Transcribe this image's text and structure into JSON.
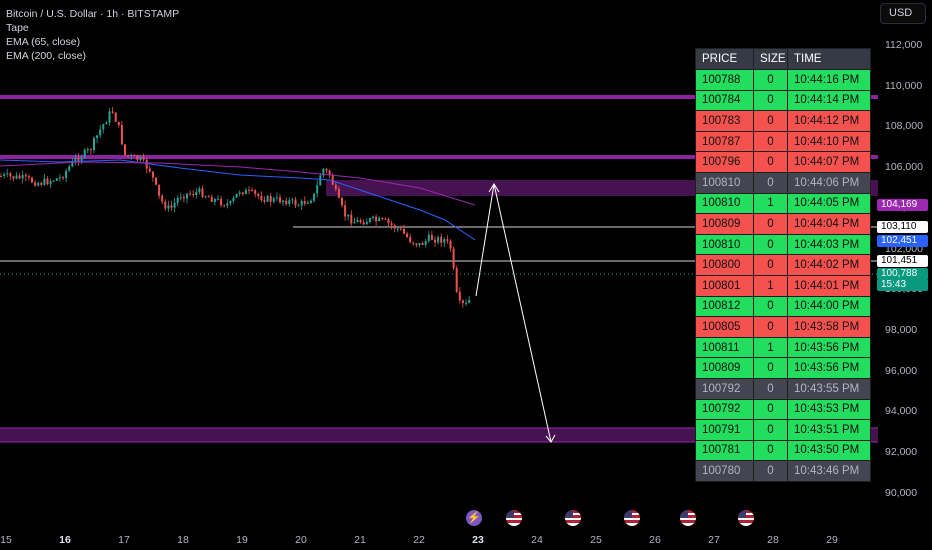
{
  "legend": {
    "symbol": "Bitcoin / U.S. Dollar · 1h · BITSTAMP",
    "indicators": [
      "Tape",
      "EMA (65, close)",
      "EMA (200, close)"
    ]
  },
  "currency_button": "USD",
  "y_axis": {
    "ticks": [
      "112,000",
      "110,000",
      "108,000",
      "106,000",
      "104,000",
      "102,000",
      "100,000",
      "98,000",
      "96,000",
      "94,000",
      "92,000",
      "90,000"
    ],
    "price_tags": [
      {
        "label": "104,169",
        "color": "#9c27b0",
        "text": "#ffffff"
      },
      {
        "label": "103,110",
        "color": "#ffffff",
        "text": "#000000"
      },
      {
        "label": "102,451",
        "color": "#2962ff",
        "text": "#ffffff"
      },
      {
        "label": "101,451",
        "color": "#ffffff",
        "text": "#000000"
      },
      {
        "label": "100,788",
        "color": "#089981",
        "text": "#ffffff"
      },
      {
        "label": "15:43",
        "color": "#089981",
        "text": "#ffffff"
      }
    ]
  },
  "x_axis": {
    "labels": [
      "15",
      "16",
      "17",
      "18",
      "19",
      "20",
      "21",
      "22",
      "23",
      "24",
      "25",
      "26",
      "27",
      "28",
      "29"
    ],
    "bold": [
      "16",
      "23"
    ]
  },
  "events": [
    "flash-icon",
    "us-flag-icon",
    "us-flag-icon",
    "us-flag-icon",
    "us-flag-icon",
    "us-flag-icon"
  ],
  "tape": {
    "headers": [
      "PRICE",
      "SIZE",
      "TIME"
    ],
    "rows": [
      {
        "price": "100788",
        "size": "0",
        "time": "10:44:16 PM",
        "side": "green"
      },
      {
        "price": "100784",
        "size": "0",
        "time": "10:44:14 PM",
        "side": "green"
      },
      {
        "price": "100783",
        "size": "0",
        "time": "10:44:12 PM",
        "side": "red"
      },
      {
        "price": "100787",
        "size": "0",
        "time": "10:44:10 PM",
        "side": "red"
      },
      {
        "price": "100796",
        "size": "0",
        "time": "10:44:07 PM",
        "side": "red"
      },
      {
        "price": "100810",
        "size": "0",
        "time": "10:44:06 PM",
        "side": "gray"
      },
      {
        "price": "100810",
        "size": "1",
        "time": "10:44:05 PM",
        "side": "green"
      },
      {
        "price": "100809",
        "size": "0",
        "time": "10:44:04 PM",
        "side": "red"
      },
      {
        "price": "100810",
        "size": "0",
        "time": "10:44:03 PM",
        "side": "green"
      },
      {
        "price": "100800",
        "size": "0",
        "time": "10:44:02 PM",
        "side": "red"
      },
      {
        "price": "100801",
        "size": "1",
        "time": "10:44:01 PM",
        "side": "red"
      },
      {
        "price": "100812",
        "size": "0",
        "time": "10:44:00 PM",
        "side": "green"
      },
      {
        "price": "100805",
        "size": "0",
        "time": "10:43:58 PM",
        "side": "red"
      },
      {
        "price": "100811",
        "size": "1",
        "time": "10:43:56 PM",
        "side": "green"
      },
      {
        "price": "100809",
        "size": "0",
        "time": "10:43:56 PM",
        "side": "green"
      },
      {
        "price": "100792",
        "size": "0",
        "time": "10:43:55 PM",
        "side": "gray"
      },
      {
        "price": "100792",
        "size": "0",
        "time": "10:43:53 PM",
        "side": "green"
      },
      {
        "price": "100791",
        "size": "0",
        "time": "10:43:51 PM",
        "side": "green"
      },
      {
        "price": "100781",
        "size": "0",
        "time": "10:43:50 PM",
        "side": "green"
      },
      {
        "price": "100780",
        "size": "0",
        "time": "10:43:46 PM",
        "side": "gray"
      }
    ]
  },
  "colors": {
    "up_candle": "#26a69a",
    "down_candle": "#ef5350",
    "zone": "#9c27b0",
    "ema65": "#2962ff",
    "ema200": "#9c27b0"
  }
}
